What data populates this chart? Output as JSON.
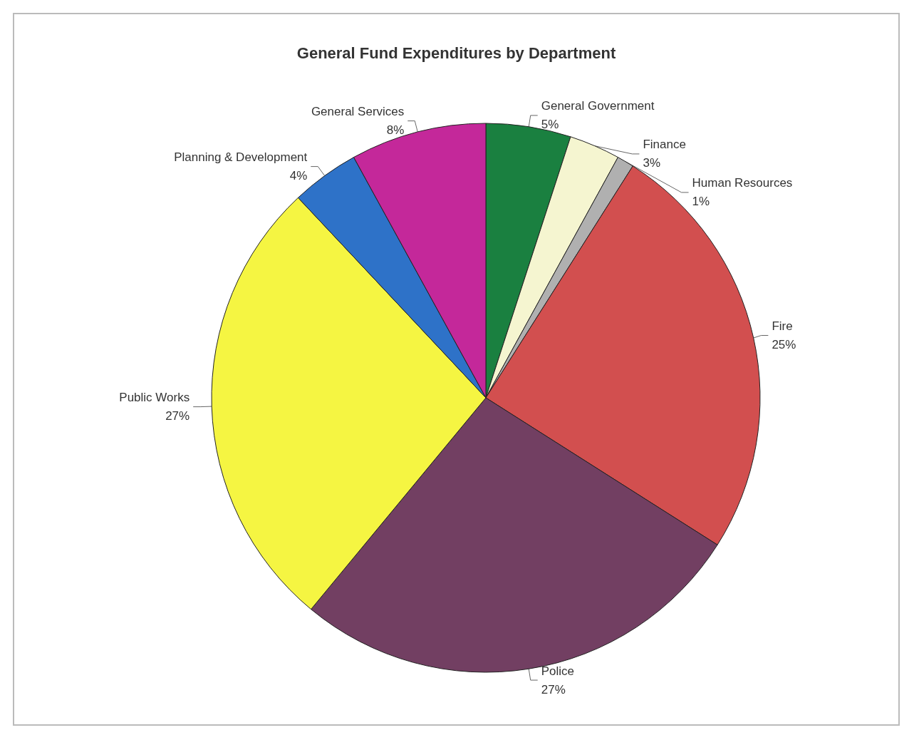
{
  "chart_data": {
    "type": "pie",
    "title": "General Fund Expenditures by Department",
    "categories": [
      "General Government",
      "Finance",
      "Human Resources",
      "Fire",
      "Police",
      "Public Works",
      "Planning & Development",
      "General Services"
    ],
    "values": [
      5,
      3,
      1,
      25,
      27,
      27,
      4,
      8
    ],
    "value_labels": [
      "5%",
      "3%",
      "1%",
      "25%",
      "27%",
      "27%",
      "4%",
      "8%"
    ],
    "colors": [
      "#1a8040",
      "#f5f5d0",
      "#b0b0b0",
      "#d24f4f",
      "#723f62",
      "#f5f542",
      "#2e72c8",
      "#c4289a"
    ],
    "legend": false
  }
}
